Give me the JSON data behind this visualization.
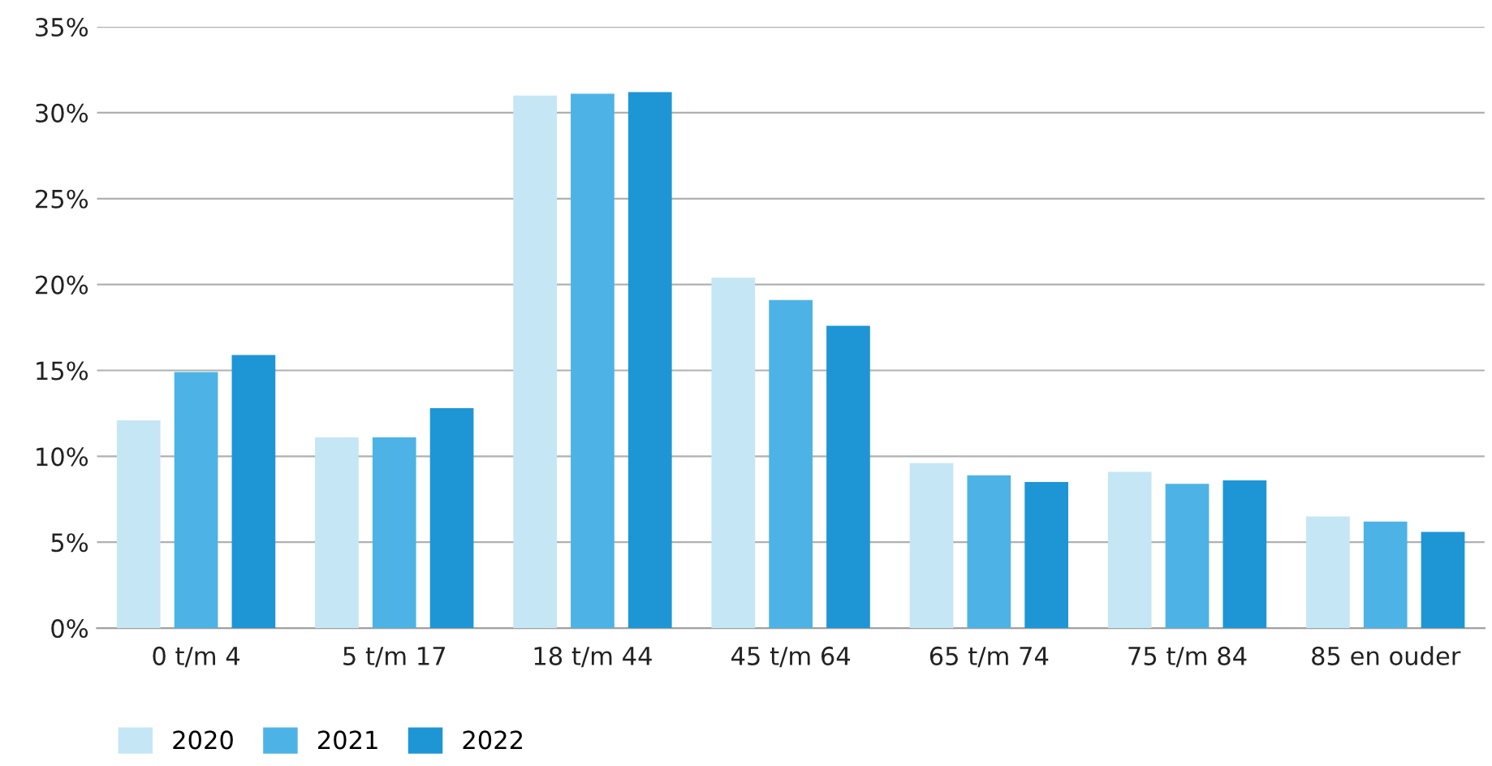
{
  "chart_data": {
    "type": "bar",
    "categories": [
      "0 t/m 4",
      "5 t/m 17",
      "18 t/m 44",
      "45 t/m 64",
      "65 t/m 74",
      "75 t/m 84",
      "85 en ouder"
    ],
    "series": [
      {
        "name": "2020",
        "color": "#c5e6f5",
        "values": [
          12.1,
          11.1,
          31.0,
          20.4,
          9.6,
          9.1,
          6.5
        ]
      },
      {
        "name": "2021",
        "color": "#4db3e6",
        "values": [
          14.9,
          11.1,
          31.1,
          19.1,
          8.9,
          8.4,
          6.2
        ]
      },
      {
        "name": "2022",
        "color": "#1e96d6",
        "values": [
          15.9,
          12.8,
          31.2,
          17.6,
          8.5,
          8.6,
          5.6
        ]
      }
    ],
    "ylim": [
      0,
      35
    ],
    "yticks": [
      {
        "value": 0,
        "label": "0%"
      },
      {
        "value": 5,
        "label": "5%"
      },
      {
        "value": 10,
        "label": "10%"
      },
      {
        "value": 15,
        "label": "15%"
      },
      {
        "value": 20,
        "label": "20%"
      },
      {
        "value": 25,
        "label": "25%"
      },
      {
        "value": 30,
        "label": "30%"
      },
      {
        "value": 35,
        "label": "35%"
      }
    ],
    "grid": "y",
    "legend": "bottom left"
  }
}
